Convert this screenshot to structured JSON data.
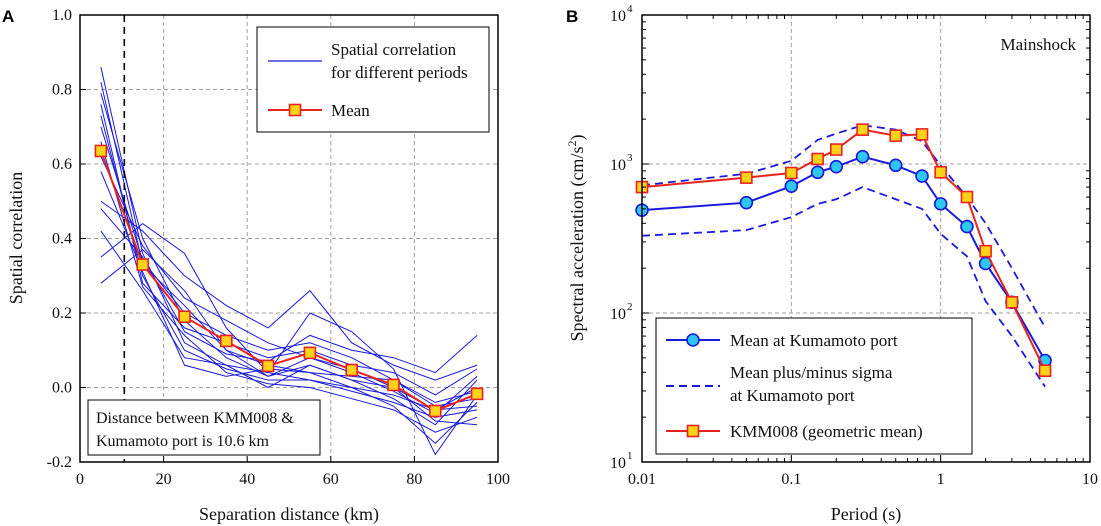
{
  "chart_data": [
    {
      "panel": "A",
      "type": "line",
      "xlabel": "Separation distance (km)",
      "ylabel": "Spatial correlation",
      "xlim": [
        0,
        100
      ],
      "ylim": [
        -0.2,
        1.0
      ],
      "x_ticks": [
        0,
        20,
        40,
        60,
        80,
        100
      ],
      "x_tick_labels": [
        "0",
        "20",
        "40",
        "60",
        "80",
        "100"
      ],
      "y_ticks": [
        -0.2,
        0.0,
        0.2,
        0.4,
        0.6,
        0.8,
        1.0
      ],
      "y_tick_labels": [
        "-0.2",
        "0.0",
        "0.2",
        "0.4",
        "0.6",
        "0.8",
        "1.0"
      ],
      "grid": true,
      "x": [
        5,
        15,
        25,
        35,
        45,
        55,
        65,
        75,
        85,
        95
      ],
      "legend": {
        "position": "top-right",
        "entries": [
          {
            "label_line1": "Spatial correlation",
            "label_line2": "for different periods",
            "color": "#1a1adb"
          },
          {
            "label": "Mean",
            "color": "#e8231f"
          }
        ]
      },
      "series": [
        {
          "name": "Spatial correlation for different periods",
          "color": "#1a1adb",
          "style": "thin",
          "curves": [
            [
              0.86,
              0.36,
              0.12,
              0.06,
              0.04,
              0.02,
              0.0,
              -0.02,
              -0.06,
              -0.05
            ],
            [
              0.82,
              0.33,
              0.22,
              0.1,
              0.06,
              0.04,
              0.03,
              0.02,
              -0.04,
              -0.01
            ],
            [
              0.79,
              0.4,
              0.18,
              0.08,
              0.03,
              0.06,
              0.02,
              -0.03,
              -0.1,
              0.02
            ],
            [
              0.76,
              0.28,
              0.16,
              0.12,
              0.08,
              0.1,
              0.06,
              0.04,
              -0.02,
              0.05
            ],
            [
              0.73,
              0.3,
              0.1,
              0.05,
              0.02,
              0.02,
              -0.01,
              -0.04,
              -0.08,
              -0.06
            ],
            [
              0.7,
              0.34,
              0.2,
              0.14,
              0.1,
              0.12,
              0.08,
              0.02,
              -0.05,
              -0.03
            ],
            [
              0.66,
              0.27,
              0.14,
              0.04,
              0.01,
              0.0,
              -0.03,
              -0.06,
              -0.12,
              -0.08
            ],
            [
              0.62,
              0.38,
              0.24,
              0.18,
              0.12,
              0.08,
              0.05,
              0.0,
              -0.06,
              0.0
            ],
            [
              0.58,
              0.31,
              0.06,
              0.03,
              0.05,
              0.04,
              0.0,
              -0.05,
              -0.15,
              -0.04
            ],
            [
              0.5,
              0.42,
              0.3,
              0.22,
              0.16,
              0.26,
              0.12,
              0.06,
              0.02,
              0.06
            ],
            [
              0.48,
              0.35,
              0.15,
              0.09,
              0.07,
              0.14,
              0.1,
              0.08,
              0.04,
              0.14
            ],
            [
              0.42,
              0.26,
              0.08,
              0.06,
              0.0,
              0.06,
              0.02,
              0.0,
              -0.09,
              -0.1
            ],
            [
              0.35,
              0.44,
              0.36,
              0.16,
              0.04,
              0.2,
              0.15,
              0.05,
              -0.18,
              -0.02
            ],
            [
              0.28,
              0.37,
              0.26,
              0.1,
              0.03,
              0.08,
              0.04,
              -0.01,
              -0.07,
              0.03
            ]
          ]
        },
        {
          "name": "Mean",
          "color": "#e8231f",
          "marker": "square",
          "values": [
            0.635,
            0.33,
            0.19,
            0.125,
            0.058,
            0.093,
            0.047,
            0.007,
            -0.063,
            -0.017
          ]
        }
      ],
      "reference_line": {
        "x": 10.6,
        "style": "dashed"
      },
      "annotation": {
        "line1": "Distance between KMM008 &",
        "line2": "Kumamoto port is 10.6 km"
      }
    },
    {
      "panel": "B",
      "type": "line",
      "xscale": "log",
      "yscale": "log",
      "xlabel": "Period (s)",
      "ylabel_main": "Spectral acceleration (cm/s",
      "ylabel_sup": "2",
      "ylabel_end": ")",
      "xlim": [
        0.01,
        10
      ],
      "ylim": [
        10,
        10000
      ],
      "x_ticks": [
        0.01,
        0.1,
        1,
        10
      ],
      "x_tick_labels": [
        "0.01",
        "0.1",
        "1",
        "10"
      ],
      "y_ticks": [
        10,
        100,
        1000,
        10000
      ],
      "y_tick_bases": [
        "10",
        "10",
        "10",
        "10"
      ],
      "y_tick_exps": [
        "1",
        "2",
        "3",
        "4"
      ],
      "grid": true,
      "annotation": "Mainshock",
      "legend": {
        "position": "bottom-left",
        "entries": [
          {
            "label": "Mean at Kumamoto port",
            "color": "#1a1adb"
          },
          {
            "label_line1": "Mean plus/minus sigma",
            "label_line2": "at Kumamoto port",
            "color": "#1a1adb"
          },
          {
            "label": "KMM008 (geometric mean)",
            "color": "#e8231f"
          }
        ]
      },
      "x": [
        0.01,
        0.05,
        0.1,
        0.15,
        0.2,
        0.3,
        0.5,
        0.75,
        1.0,
        1.5,
        2.0,
        3.0,
        5.0
      ],
      "series": [
        {
          "name": "Mean at Kumamoto port",
          "color": "#1a1adb",
          "marker": "circle",
          "values": [
            490,
            550,
            710,
            880,
            960,
            1120,
            980,
            830,
            540,
            380,
            215,
            118,
            48
          ]
        },
        {
          "name": "Mean plus sigma",
          "color": "#1a1adb",
          "style": "dashed",
          "values": [
            720,
            860,
            1050,
            1450,
            1600,
            1820,
            1700,
            1420,
            980,
            600,
            400,
            200,
            80
          ]
        },
        {
          "name": "Mean minus sigma",
          "color": "#1a1adb",
          "style": "dashed",
          "values": [
            330,
            360,
            440,
            540,
            580,
            700,
            580,
            500,
            340,
            240,
            120,
            70,
            32
          ]
        },
        {
          "name": "KMM008 (geometric mean)",
          "color": "#e8231f",
          "marker": "square",
          "values": [
            700,
            810,
            870,
            1080,
            1250,
            1700,
            1550,
            1580,
            880,
            600,
            260,
            118,
            41
          ]
        }
      ]
    }
  ]
}
